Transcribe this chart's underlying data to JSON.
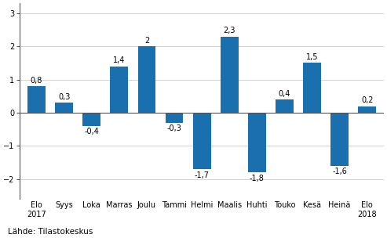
{
  "categories": [
    "Elo\n2017",
    "Syys",
    "Loka",
    "Marras",
    "Joulu",
    "Tammi",
    "Helmi",
    "Maalis",
    "Huhti",
    "Touko",
    "Kesä",
    "Heinä",
    "Elo\n2018"
  ],
  "values": [
    0.8,
    0.3,
    -0.4,
    1.4,
    2.0,
    -0.3,
    -1.7,
    2.3,
    -1.8,
    0.4,
    1.5,
    -1.6,
    0.2
  ],
  "bar_color": "#1a6faf",
  "ylim": [
    -2.6,
    3.3
  ],
  "yticks": [
    -2,
    -1,
    0,
    1,
    2,
    3
  ],
  "footer": "Lähde: Tilastokeskus",
  "background_color": "#ffffff",
  "label_fontsize": 7,
  "tick_fontsize": 7,
  "footer_fontsize": 7.5,
  "bar_width": 0.65
}
